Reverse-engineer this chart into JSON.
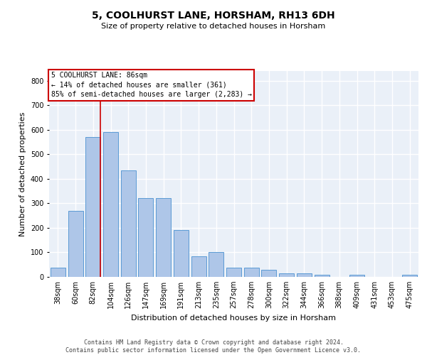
{
  "title": "5, COOLHURST LANE, HORSHAM, RH13 6DH",
  "subtitle": "Size of property relative to detached houses in Horsham",
  "xlabel": "Distribution of detached houses by size in Horsham",
  "ylabel": "Number of detached properties",
  "categories": [
    "38sqm",
    "60sqm",
    "82sqm",
    "104sqm",
    "126sqm",
    "147sqm",
    "169sqm",
    "191sqm",
    "213sqm",
    "235sqm",
    "257sqm",
    "278sqm",
    "300sqm",
    "322sqm",
    "344sqm",
    "366sqm",
    "388sqm",
    "409sqm",
    "431sqm",
    "453sqm",
    "475sqm"
  ],
  "values": [
    38,
    268,
    570,
    590,
    435,
    322,
    322,
    190,
    85,
    100,
    38,
    38,
    30,
    14,
    14,
    10,
    0,
    10,
    0,
    0,
    8
  ],
  "bar_color": "#aec6e8",
  "bar_edge_color": "#5b9bd5",
  "bg_color": "#eaf0f8",
  "grid_color": "#ffffff",
  "vline_color": "#cc0000",
  "vline_x_index": 2,
  "annotation_box_text": "5 COOLHURST LANE: 86sqm\n← 14% of detached houses are smaller (361)\n85% of semi-detached houses are larger (2,283) →",
  "annotation_box_color": "#cc0000",
  "annotation_box_bg": "#ffffff",
  "footer_text": "Contains HM Land Registry data © Crown copyright and database right 2024.\nContains public sector information licensed under the Open Government Licence v3.0.",
  "ylim": [
    0,
    840
  ],
  "yticks": [
    0,
    100,
    200,
    300,
    400,
    500,
    600,
    700,
    800
  ],
  "title_fontsize": 10,
  "subtitle_fontsize": 8,
  "ylabel_fontsize": 8,
  "xlabel_fontsize": 8,
  "tick_fontsize": 7,
  "annotation_fontsize": 7
}
